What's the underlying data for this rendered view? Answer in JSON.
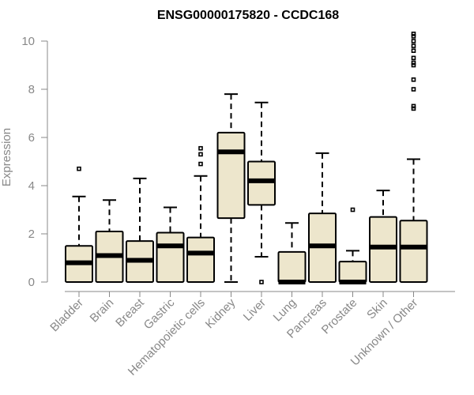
{
  "chart_data": {
    "type": "boxplot",
    "title": "ENSG00000175820 - CCDC168",
    "xlabel": "",
    "ylabel": "Expression",
    "ylim": [
      0,
      10
    ],
    "yticks": [
      "0",
      "2",
      "4",
      "6",
      "8",
      "10"
    ],
    "colors": {
      "box_fill": "#ede6cc",
      "stroke": "#000000",
      "axis": "#888888"
    },
    "categories": [
      "Bladder",
      "Brain",
      "Breast",
      "Gastric",
      "Hematopoietic cells",
      "Kidney",
      "Liver",
      "Lung",
      "Pancreas",
      "Prostate",
      "Skin",
      "Unknown / Other"
    ],
    "boxes": [
      {
        "whisker_low": 0,
        "q1": 0,
        "median": 0.8,
        "q3": 1.5,
        "whisker_high": 3.55,
        "outliers": [
          4.7
        ]
      },
      {
        "whisker_low": 0,
        "q1": 0,
        "median": 1.1,
        "q3": 2.1,
        "whisker_high": 3.4,
        "outliers": []
      },
      {
        "whisker_low": 0,
        "q1": 0,
        "median": 0.9,
        "q3": 1.7,
        "whisker_high": 4.3,
        "outliers": []
      },
      {
        "whisker_low": 0,
        "q1": 0,
        "median": 1.5,
        "q3": 2.05,
        "whisker_high": 3.1,
        "outliers": []
      },
      {
        "whisker_low": 0,
        "q1": 0,
        "median": 1.2,
        "q3": 1.85,
        "whisker_high": 4.4,
        "outliers": [
          4.9,
          5.3,
          5.55
        ]
      },
      {
        "whisker_low": 0,
        "q1": 2.65,
        "median": 5.4,
        "q3": 6.2,
        "whisker_high": 7.8,
        "outliers": []
      },
      {
        "whisker_low": 1.05,
        "q1": 3.2,
        "median": 4.2,
        "q3": 5.0,
        "whisker_high": 7.45,
        "outliers": [
          0
        ]
      },
      {
        "whisker_low": 0,
        "q1": 0,
        "median": 0,
        "q3": 1.25,
        "whisker_high": 2.45,
        "outliers": []
      },
      {
        "whisker_low": 0,
        "q1": 0,
        "median": 1.5,
        "q3": 2.85,
        "whisker_high": 5.35,
        "outliers": []
      },
      {
        "whisker_low": 0,
        "q1": 0,
        "median": 0,
        "q3": 0.85,
        "whisker_high": 1.3,
        "outliers": [
          3.0
        ]
      },
      {
        "whisker_low": 0,
        "q1": 0,
        "median": 1.45,
        "q3": 2.7,
        "whisker_high": 3.8,
        "outliers": []
      },
      {
        "whisker_low": 0,
        "q1": 0,
        "median": 1.45,
        "q3": 2.55,
        "whisker_high": 5.1,
        "outliers": [
          7.2,
          7.3,
          8.0,
          8.4,
          9.0,
          9.1,
          9.3,
          9.6,
          9.8,
          10.0,
          10.2,
          10.3
        ]
      }
    ]
  }
}
